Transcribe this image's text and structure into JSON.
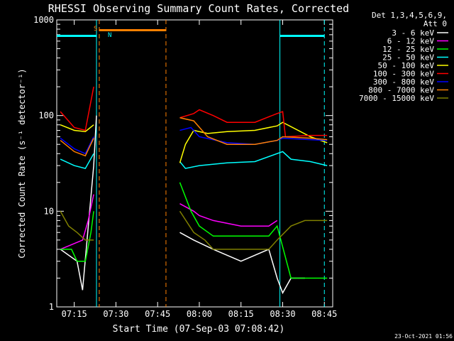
{
  "chart_data": {
    "type": "line",
    "title": "RHESSI Observing Summary Count Rates, Corrected",
    "xlabel": "Start Time (07-Sep-03 07:08:42)",
    "ylabel": "Corrected Count Rate (s⁻¹ detector⁻¹)",
    "y_scale": "log",
    "ylim": [
      1,
      1000
    ],
    "xlim": [
      "07:08:42",
      "08:48:00"
    ],
    "x_ticks": [
      "07:15",
      "07:30",
      "07:45",
      "08:00",
      "08:15",
      "08:30",
      "08:45"
    ],
    "y_ticks": [
      "1",
      "10",
      "100",
      "1000"
    ],
    "timestamp": "23-Oct-2021 01:56",
    "legend": {
      "header": [
        "Det 1,3,4,5,6,9,",
        "Att 0"
      ],
      "placement": "right"
    },
    "markers": {
      "saa_label": "S",
      "night_label": "N",
      "saa_color": "#ff8000",
      "night_color": "#00ffff"
    },
    "series": [
      {
        "name": "3 - 6 keV",
        "color": "#ffffff",
        "points": [
          [
            "07:10",
            4
          ],
          [
            "07:16",
            3
          ],
          [
            "07:18",
            1.5
          ],
          [
            "07:22",
            30
          ],
          [
            "07:23",
            100
          ],
          [
            "07:53",
            6
          ],
          [
            "07:58",
            5
          ],
          [
            "08:05",
            4
          ],
          [
            "08:15",
            3
          ],
          [
            "08:25",
            4
          ],
          [
            "08:28",
            2
          ],
          [
            "08:30",
            1.4
          ],
          [
            "08:33",
            2
          ],
          [
            "08:38",
            2
          ]
        ]
      },
      {
        "name": "6 - 12 keV",
        "color": "#ff00ff",
        "points": [
          [
            "07:10",
            4
          ],
          [
            "07:18",
            5
          ],
          [
            "07:20",
            8
          ],
          [
            "07:22",
            15
          ],
          [
            "07:53",
            12
          ],
          [
            "07:58",
            10
          ],
          [
            "08:00",
            9
          ],
          [
            "08:05",
            8
          ],
          [
            "08:15",
            7
          ],
          [
            "08:25",
            7
          ],
          [
            "08:28",
            8
          ]
        ]
      },
      {
        "name": "12 - 25 keV",
        "color": "#00ff00",
        "points": [
          [
            "07:10",
            4
          ],
          [
            "07:14",
            4
          ],
          [
            "07:16",
            3
          ],
          [
            "07:19",
            3
          ],
          [
            "07:21",
            6
          ],
          [
            "07:22",
            10
          ],
          [
            "07:53",
            20
          ],
          [
            "07:57",
            10
          ],
          [
            "08:00",
            7
          ],
          [
            "08:05",
            5.5
          ],
          [
            "08:15",
            5.5
          ],
          [
            "08:25",
            5.5
          ],
          [
            "08:28",
            7
          ],
          [
            "08:33",
            2
          ],
          [
            "08:46",
            2
          ]
        ]
      },
      {
        "name": "25 - 50 keV",
        "color": "#00ffff",
        "points": [
          [
            "07:10",
            35
          ],
          [
            "07:15",
            30
          ],
          [
            "07:19",
            28
          ],
          [
            "07:22",
            40
          ],
          [
            "07:53",
            33
          ],
          [
            "07:55",
            28
          ],
          [
            "08:00",
            30
          ],
          [
            "08:10",
            32
          ],
          [
            "08:20",
            33
          ],
          [
            "08:30",
            42
          ],
          [
            "08:33",
            35
          ],
          [
            "08:40",
            33
          ],
          [
            "08:46",
            30
          ]
        ]
      },
      {
        "name": "50 - 100 keV",
        "color": "#ffff00",
        "points": [
          [
            "07:10",
            80
          ],
          [
            "07:15",
            70
          ],
          [
            "07:19",
            68
          ],
          [
            "07:22",
            80
          ],
          [
            "07:53",
            32
          ],
          [
            "07:55",
            50
          ],
          [
            "07:58",
            70
          ],
          [
            "08:03",
            65
          ],
          [
            "08:10",
            68
          ],
          [
            "08:20",
            70
          ],
          [
            "08:28",
            78
          ],
          [
            "08:30",
            85
          ],
          [
            "08:40",
            60
          ],
          [
            "08:46",
            52
          ]
        ]
      },
      {
        "name": "100 - 300 keV",
        "color": "#ff0000",
        "points": [
          [
            "07:10",
            110
          ],
          [
            "07:15",
            75
          ],
          [
            "07:19",
            70
          ],
          [
            "07:22",
            200
          ],
          [
            "07:53",
            95
          ],
          [
            "07:58",
            105
          ],
          [
            "08:00",
            115
          ],
          [
            "08:05",
            100
          ],
          [
            "08:10",
            85
          ],
          [
            "08:20",
            85
          ],
          [
            "08:28",
            105
          ],
          [
            "08:30",
            110
          ],
          [
            "08:31",
            60
          ],
          [
            "08:40",
            62
          ],
          [
            "08:46",
            62
          ]
        ]
      },
      {
        "name": "300 - 800 keV",
        "color": "#0000ff",
        "points": [
          [
            "07:10",
            58
          ],
          [
            "07:15",
            45
          ],
          [
            "07:19",
            40
          ],
          [
            "07:22",
            60
          ],
          [
            "07:53",
            70
          ],
          [
            "07:57",
            75
          ],
          [
            "08:00",
            60
          ],
          [
            "08:10",
            52
          ],
          [
            "08:20",
            50
          ],
          [
            "08:28",
            55
          ],
          [
            "08:30",
            58
          ],
          [
            "08:40",
            56
          ],
          [
            "08:46",
            55
          ]
        ]
      },
      {
        "name": "800 - 7000 keV",
        "color": "#ff8000",
        "points": [
          [
            "07:10",
            55
          ],
          [
            "07:15",
            42
          ],
          [
            "07:19",
            38
          ],
          [
            "07:22",
            58
          ],
          [
            "07:53",
            95
          ],
          [
            "07:58",
            88
          ],
          [
            "08:03",
            60
          ],
          [
            "08:10",
            50
          ],
          [
            "08:20",
            50
          ],
          [
            "08:28",
            55
          ],
          [
            "08:30",
            60
          ],
          [
            "08:40",
            58
          ],
          [
            "08:46",
            56
          ]
        ]
      },
      {
        "name": "7000 - 15000 keV",
        "color": "#808000",
        "points": [
          [
            "07:10",
            10
          ],
          [
            "07:13",
            7
          ],
          [
            "07:16",
            6
          ],
          [
            "07:19",
            5
          ],
          [
            "07:22",
            5
          ],
          [
            "07:53",
            10
          ],
          [
            "07:58",
            6
          ],
          [
            "08:02",
            5
          ],
          [
            "08:05",
            4
          ],
          [
            "08:15",
            4
          ],
          [
            "08:25",
            4
          ],
          [
            "08:28",
            5
          ],
          [
            "08:33",
            7
          ],
          [
            "08:38",
            8
          ],
          [
            "08:46",
            8
          ]
        ]
      }
    ],
    "vertical_lines": [
      {
        "time": "07:24",
        "color": "#ff8000",
        "style": "dashed"
      },
      {
        "time": "07:48",
        "color": "#ff8000",
        "style": "dashed"
      },
      {
        "time": "07:23",
        "color": "#00ffff",
        "style": "solid"
      },
      {
        "time": "08:29",
        "color": "#00ffff",
        "style": "solid"
      },
      {
        "time": "08:45",
        "color": "#00ffff",
        "style": "dashed"
      }
    ],
    "bars": [
      {
        "start": "07:24",
        "end": "07:48",
        "value": 780,
        "color": "#ff8000"
      },
      {
        "start": "07:08:42",
        "end": "07:23",
        "value": 680,
        "color": "#00ffff"
      },
      {
        "start": "08:29",
        "end": "08:45",
        "value": 680,
        "color": "#00ffff"
      }
    ]
  }
}
